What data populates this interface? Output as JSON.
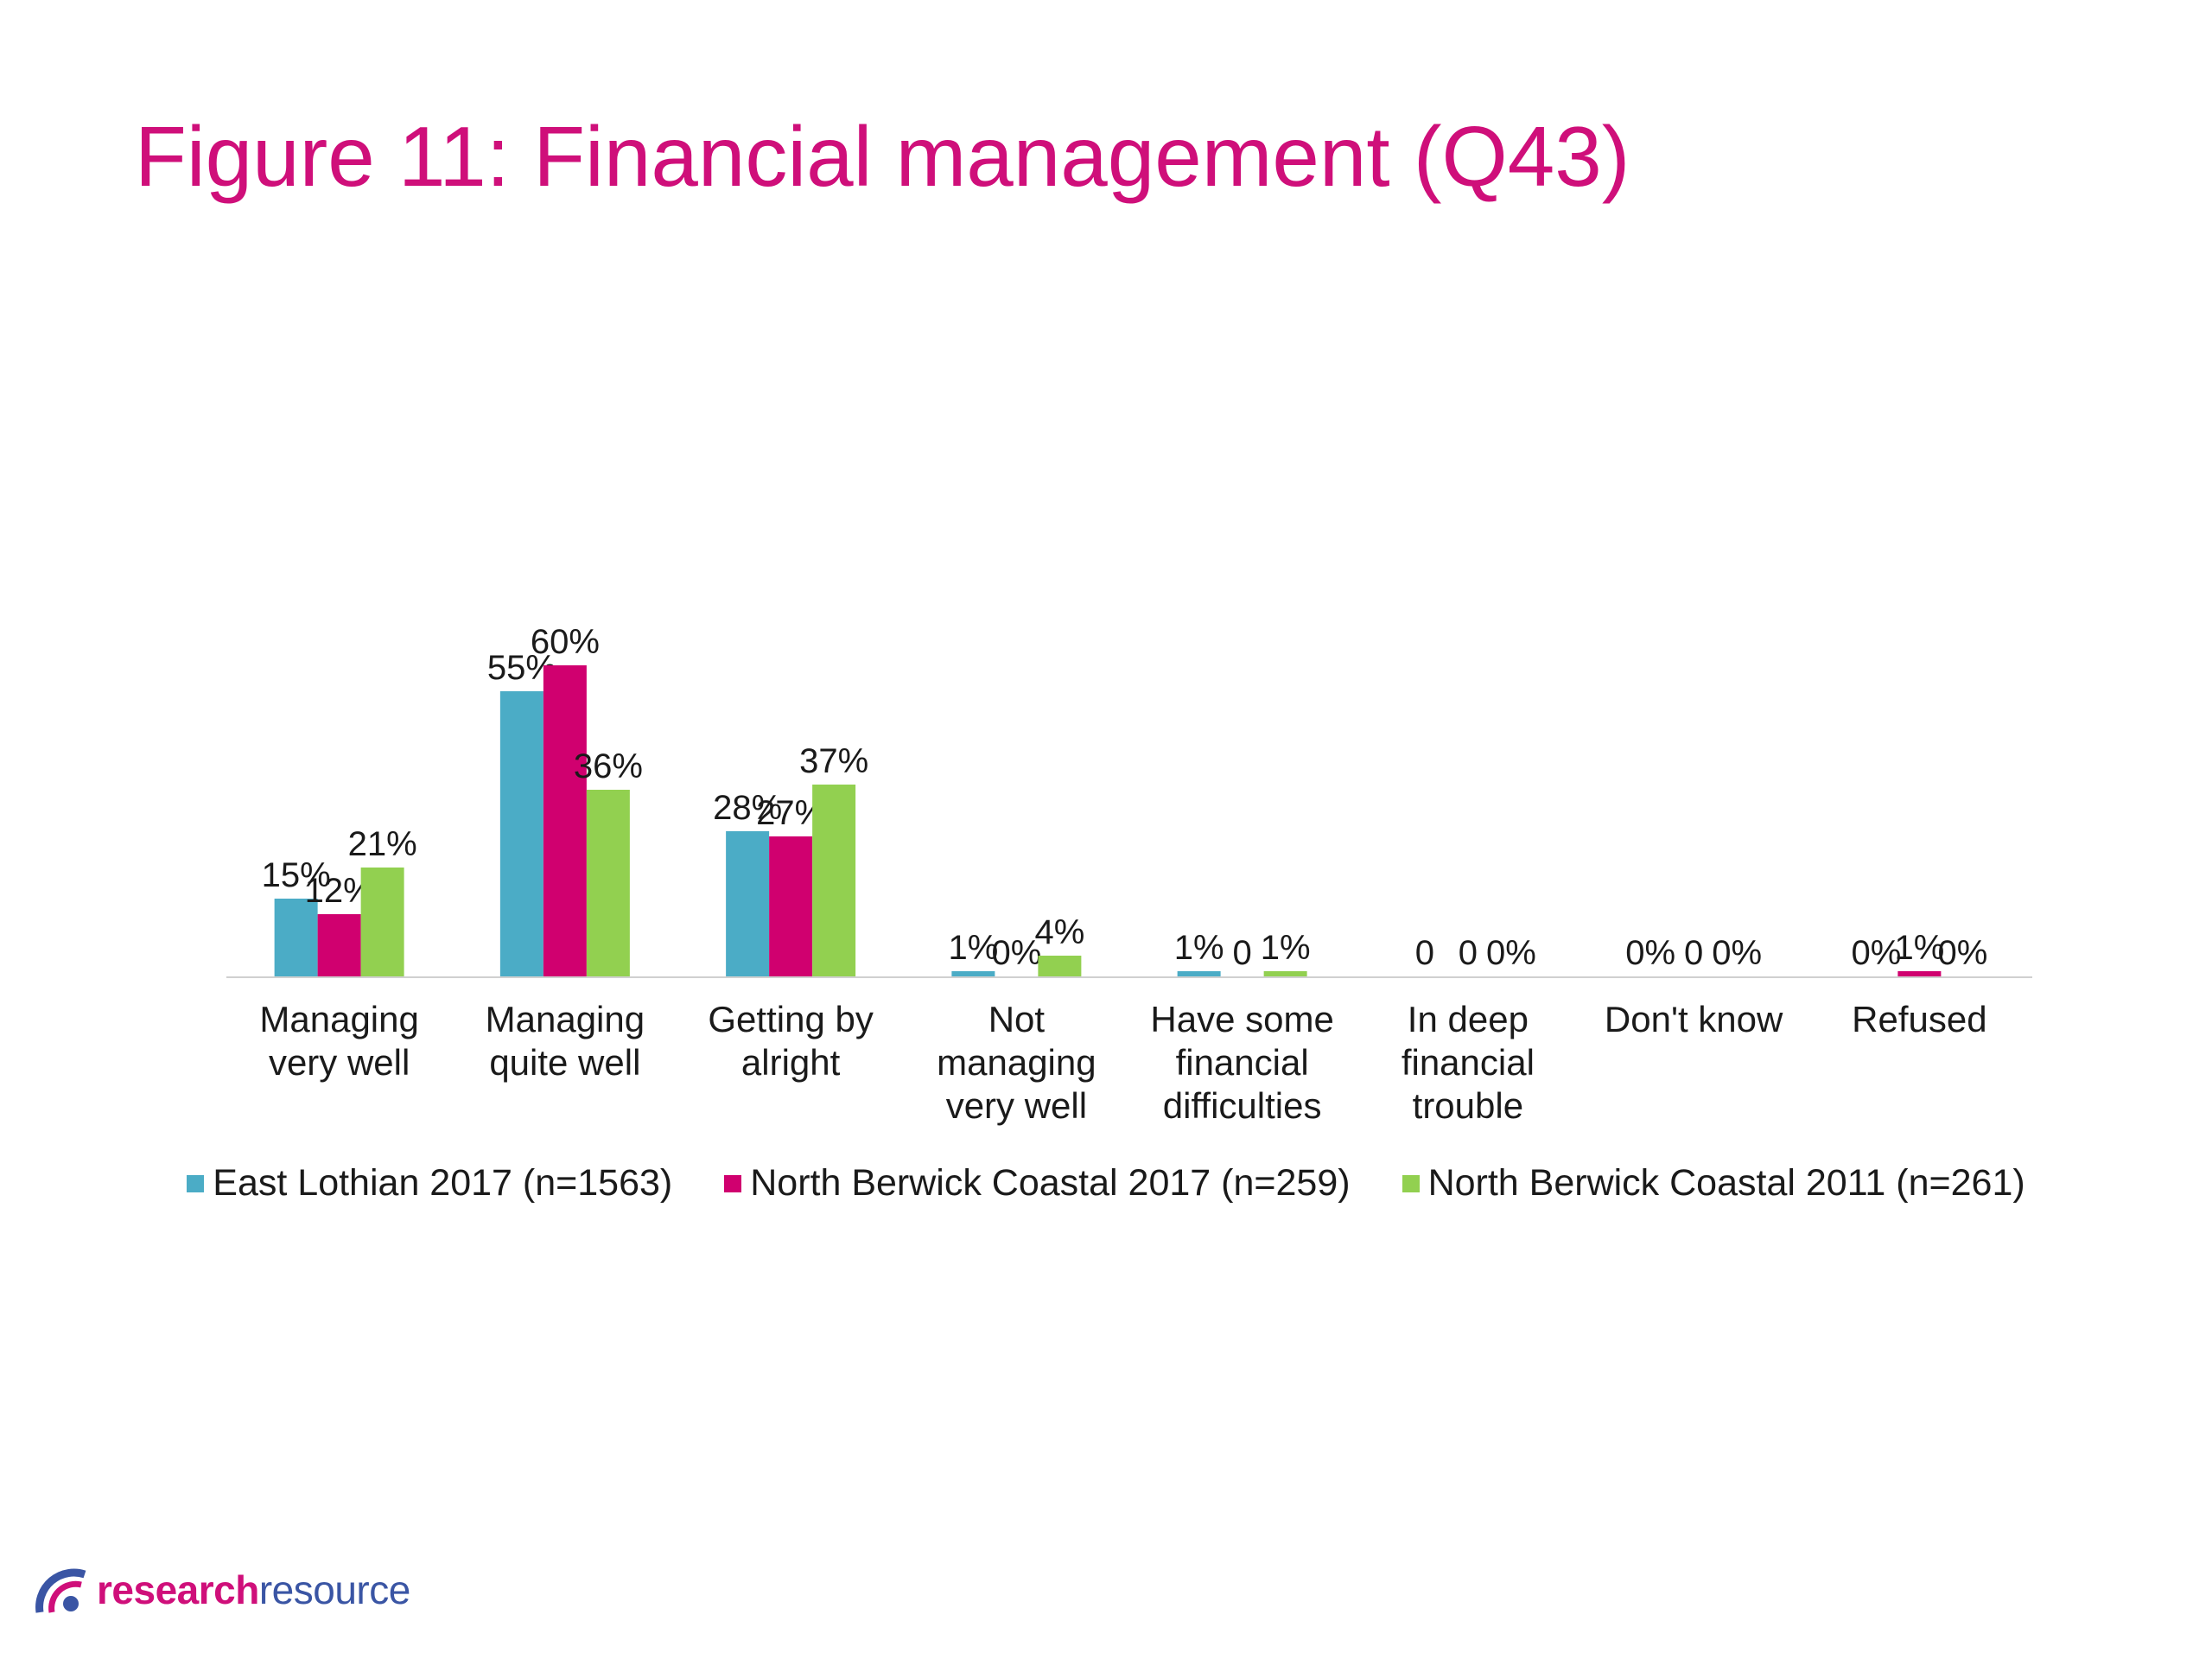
{
  "title": "Figure 11: Financial management (Q43)",
  "chart_data": {
    "type": "bar",
    "categories": [
      [
        "Managing",
        "very well"
      ],
      [
        "Managing",
        "quite well"
      ],
      [
        "Getting by",
        "alright"
      ],
      [
        "Not",
        "managing",
        "very well"
      ],
      [
        "Have some",
        "financial",
        "difficulties"
      ],
      [
        "In deep",
        "financial",
        "trouble"
      ],
      [
        "Don't know"
      ],
      [
        "Refused"
      ]
    ],
    "series": [
      {
        "name": "East Lothian 2017 (n=1563)",
        "color": "#4bacc6",
        "values": [
          15,
          55,
          28,
          1,
          1,
          0,
          0,
          0
        ],
        "labels": [
          "15%",
          "55%",
          "28%",
          "1%",
          "1%",
          "0",
          "0%",
          "0%"
        ]
      },
      {
        "name": "North Berwick Coastal 2017 (n=259)",
        "color": "#d0006f",
        "values": [
          12,
          60,
          27,
          0,
          0,
          0,
          0,
          1
        ],
        "labels": [
          "12%",
          "60%",
          "27%",
          "0%",
          "0",
          "0",
          "0",
          "1%"
        ]
      },
      {
        "name": "North Berwick Coastal 2011 (n=261)",
        "color": "#92d050",
        "values": [
          21,
          36,
          37,
          4,
          1,
          0,
          0,
          0
        ],
        "labels": [
          "21%",
          "36%",
          "37%",
          "4%",
          "1%",
          "0%",
          "0%",
          "0%"
        ]
      }
    ],
    "ylim": [
      0,
      60
    ],
    "legend_position": "bottom",
    "grid": false
  },
  "logo": {
    "text_a": "research",
    "text_b": "resource",
    "color_a": "#cf0f7a",
    "color_b": "#3a55a4"
  }
}
